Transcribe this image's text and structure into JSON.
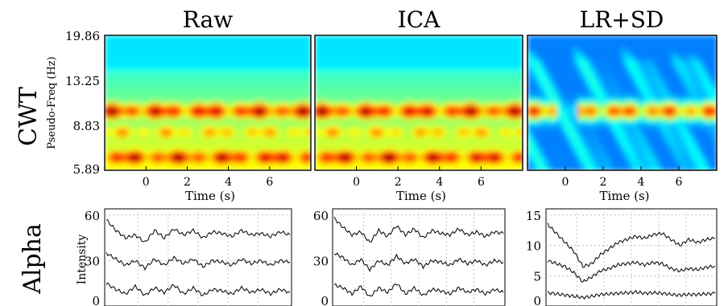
{
  "figure": {
    "row_labels": [
      "CWT",
      "Alpha"
    ],
    "column_titles": [
      "Raw",
      "ICA",
      "LR+SD"
    ]
  },
  "chart_data": [
    {
      "type": "heatmap",
      "panel": "Raw",
      "title": "Raw",
      "xlabel": "Time (s)",
      "ylabel": "Pseudo-Freq (Hz)",
      "xticks": [
        "0",
        "2",
        "4",
        "6"
      ],
      "xlim": [
        -2,
        8
      ],
      "yticks": [
        "5.89",
        "8.83",
        "13.25",
        "19.86"
      ],
      "ylim": [
        5.89,
        19.86
      ],
      "colormap": "jet",
      "bands": [
        {
          "freq_hz": 12.0,
          "power": 0.95,
          "modulated": true
        },
        {
          "freq_hz": 9.8,
          "power": 0.6,
          "modulated": true
        },
        {
          "freq_hz": 7.2,
          "power": 0.95,
          "modulated": true
        }
      ]
    },
    {
      "type": "heatmap",
      "panel": "ICA",
      "title": "ICA",
      "xlabel": "Time (s)",
      "xticks": [
        "0",
        "2",
        "4",
        "6"
      ],
      "xlim": [
        -2,
        8
      ],
      "yticks": [],
      "ylim": [
        5.89,
        19.86
      ],
      "colormap": "jet",
      "bands": [
        {
          "freq_hz": 12.0,
          "power": 0.95,
          "modulated": true
        },
        {
          "freq_hz": 9.8,
          "power": 0.6,
          "modulated": true
        },
        {
          "freq_hz": 7.2,
          "power": 0.95,
          "modulated": true
        }
      ]
    },
    {
      "type": "heatmap",
      "panel": "LR+SD",
      "title": "LR+SD",
      "xlabel": "Time (s)",
      "xticks": [
        "0",
        "2",
        "4",
        "6"
      ],
      "xlim": [
        -2,
        8
      ],
      "yticks": [],
      "ylim": [
        5.89,
        19.86
      ],
      "colormap": "jet",
      "bands": [
        {
          "freq_hz": 12.0,
          "power": 0.9,
          "modulated": true,
          "gap_time_s": [
            -0.5,
            0.7
          ]
        }
      ]
    },
    {
      "type": "line",
      "panel": "Raw-alpha",
      "ylabel": "Intensity",
      "yticks": [
        "0",
        "30",
        "60"
      ],
      "ylim": [
        0,
        60
      ],
      "grid": true,
      "series": [
        {
          "values": [
            57,
            50,
            45,
            47,
            42,
            50,
            45,
            51,
            47,
            50,
            45,
            49,
            48,
            46,
            50,
            47,
            48,
            46,
            49,
            47
          ]
        },
        {
          "values": [
            35,
            31,
            27,
            30,
            25,
            31,
            27,
            32,
            28,
            31,
            26,
            30,
            29,
            27,
            31,
            28,
            30,
            27,
            30,
            29
          ]
        },
        {
          "values": [
            15,
            11,
            8,
            13,
            7,
            12,
            9,
            14,
            8,
            12,
            7,
            11,
            10,
            8,
            12,
            9,
            11,
            8,
            11,
            9
          ]
        }
      ]
    },
    {
      "type": "line",
      "panel": "ICA-alpha",
      "yticks": [
        "0",
        "30",
        "60"
      ],
      "ylim": [
        0,
        60
      ],
      "grid": true,
      "series": [
        {
          "values": [
            58,
            52,
            47,
            49,
            42,
            50,
            46,
            53,
            47,
            51,
            45,
            50,
            48,
            47,
            51,
            47,
            49,
            46,
            49,
            48
          ]
        },
        {
          "values": [
            35,
            32,
            27,
            31,
            24,
            30,
            27,
            33,
            28,
            31,
            26,
            30,
            29,
            27,
            31,
            28,
            30,
            27,
            30,
            29
          ]
        },
        {
          "values": [
            14,
            12,
            8,
            13,
            6,
            12,
            9,
            15,
            8,
            12,
            7,
            11,
            10,
            8,
            12,
            9,
            11,
            8,
            11,
            9
          ]
        }
      ]
    },
    {
      "type": "line",
      "panel": "LR+SD-alpha",
      "yticks": [
        "0",
        "5",
        "10",
        "15"
      ],
      "ylim": [
        0,
        15
      ],
      "grid": true,
      "series": [
        {
          "values": [
            13.5,
            12.0,
            10.5,
            9.0,
            6.5,
            7.0,
            8.5,
            9.5,
            10.5,
            11.0,
            11.5,
            11.2,
            11.8,
            12.0,
            11.0,
            10.0,
            11.0,
            10.5,
            11.0,
            11.2
          ]
        },
        {
          "values": [
            7.5,
            7.0,
            6.5,
            5.5,
            4.0,
            4.8,
            5.8,
            6.2,
            6.8,
            7.0,
            7.2,
            6.8,
            7.2,
            7.0,
            6.2,
            5.8,
            6.2,
            6.0,
            6.4,
            6.6
          ]
        },
        {
          "values": [
            2.2,
            2.0,
            1.8,
            1.6,
            1.4,
            1.6,
            1.9,
            2.0,
            2.1,
            2.2,
            2.3,
            2.1,
            2.2,
            2.1,
            1.9,
            1.8,
            1.9,
            1.9,
            2.0,
            2.1
          ]
        }
      ]
    }
  ]
}
